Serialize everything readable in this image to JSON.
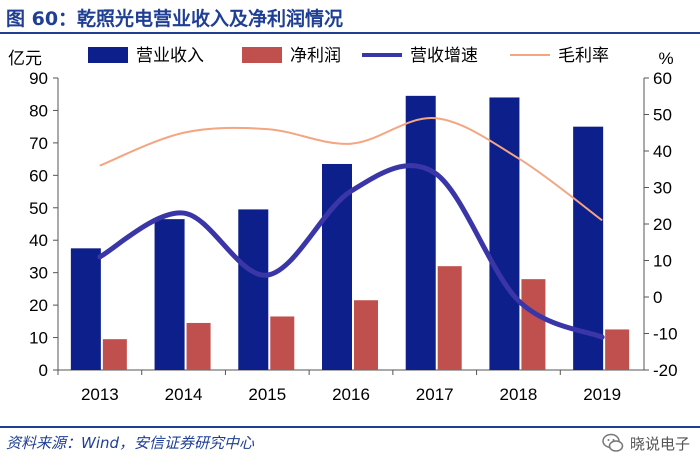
{
  "header": {
    "title": "图 60：乾照光电营业收入及净利润情况"
  },
  "source": {
    "text": "资料来源：Wind，安信证券研究中心"
  },
  "watermark": {
    "text": "晓说电子",
    "icon": "wechat-icon"
  },
  "colors": {
    "title": "#1f3f95",
    "revenue_bar": "#0c1f8a",
    "profit_bar": "#c0504d",
    "growth_line": "#3a36a8",
    "margin_line": "#f4a582"
  },
  "chart_data": {
    "type": "bar",
    "categories": [
      "2013",
      "2014",
      "2015",
      "2016",
      "2017",
      "2018",
      "2019"
    ],
    "y_left_label": "亿元",
    "y_right_label": "%",
    "ylim_left": [
      0,
      90
    ],
    "ylim_right": [
      -20,
      60
    ],
    "yticks_left": [
      "0",
      "10",
      "20",
      "30",
      "40",
      "50",
      "60",
      "70",
      "80",
      "90"
    ],
    "yticks_right": [
      "-20",
      "-10",
      "0",
      "10",
      "20",
      "30",
      "40",
      "50",
      "60"
    ],
    "legend_position": "top",
    "series": [
      {
        "name": "营业收入",
        "type": "bar",
        "axis": "left",
        "values": [
          37.5,
          46.5,
          49.5,
          63.5,
          84.5,
          84,
          75
        ]
      },
      {
        "name": "净利润",
        "type": "bar",
        "axis": "left",
        "values": [
          9.5,
          14.5,
          16.5,
          21.5,
          32,
          28,
          12.5
        ]
      },
      {
        "name": "营收增速",
        "type": "line",
        "axis": "right",
        "values": [
          11,
          23,
          6,
          29,
          34,
          -1,
          -11
        ]
      },
      {
        "name": "毛利率",
        "type": "line",
        "axis": "right",
        "values": [
          36,
          45,
          46,
          42,
          49,
          38,
          21
        ]
      }
    ]
  }
}
